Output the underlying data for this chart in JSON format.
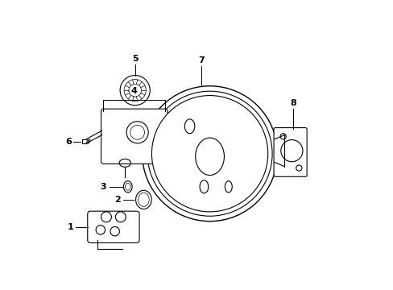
{
  "title": "",
  "background_color": "#ffffff",
  "line_color": "#000000",
  "label_color": "#000000",
  "parts": [
    {
      "id": 1,
      "label": "1"
    },
    {
      "id": 2,
      "label": "2"
    },
    {
      "id": 3,
      "label": "3"
    },
    {
      "id": 4,
      "label": "4"
    },
    {
      "id": 5,
      "label": "5"
    },
    {
      "id": 6,
      "label": "6"
    },
    {
      "id": 7,
      "label": "7"
    },
    {
      "id": 8,
      "label": "8"
    }
  ]
}
